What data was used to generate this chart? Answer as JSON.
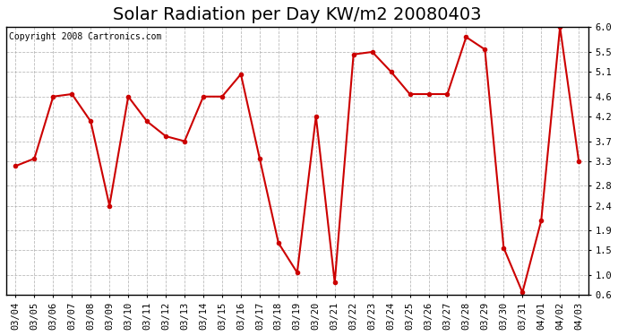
{
  "title": "Solar Radiation per Day KW/m2 20080403",
  "copyright": "Copyright 2008 Cartronics.com",
  "dates": [
    "03/04",
    "03/05",
    "03/06",
    "03/07",
    "03/08",
    "03/09",
    "03/10",
    "03/11",
    "03/12",
    "03/13",
    "03/14",
    "03/15",
    "03/16",
    "03/17",
    "03/18",
    "03/19",
    "03/20",
    "03/21",
    "03/22",
    "03/23",
    "03/24",
    "03/25",
    "03/26",
    "03/27",
    "03/28",
    "03/29",
    "03/30",
    "03/31",
    "04/01",
    "04/02",
    "04/03"
  ],
  "values": [
    3.2,
    3.35,
    4.6,
    4.65,
    4.1,
    2.4,
    4.6,
    4.1,
    3.8,
    3.7,
    4.6,
    4.6,
    5.05,
    3.35,
    1.65,
    1.05,
    4.2,
    0.85,
    5.45,
    5.5,
    5.1,
    4.65,
    4.65,
    4.65,
    5.8,
    5.55,
    1.55,
    0.65,
    2.1,
    6.0,
    3.3
  ],
  "line_color": "#cc0000",
  "marker": "o",
  "markersize": 3,
  "linewidth": 1.5,
  "bg_color": "#ffffff",
  "plot_bg_color": "#ffffff",
  "grid_color": "#aaaaaa",
  "grid_style": "--",
  "ylim": [
    0.6,
    6.0
  ],
  "yticks": [
    0.6,
    1.0,
    1.5,
    1.9,
    2.4,
    2.8,
    3.3,
    3.7,
    4.2,
    4.6,
    5.1,
    5.5,
    6.0
  ],
  "title_fontsize": 14,
  "tick_fontsize": 7.5,
  "copyright_fontsize": 7
}
